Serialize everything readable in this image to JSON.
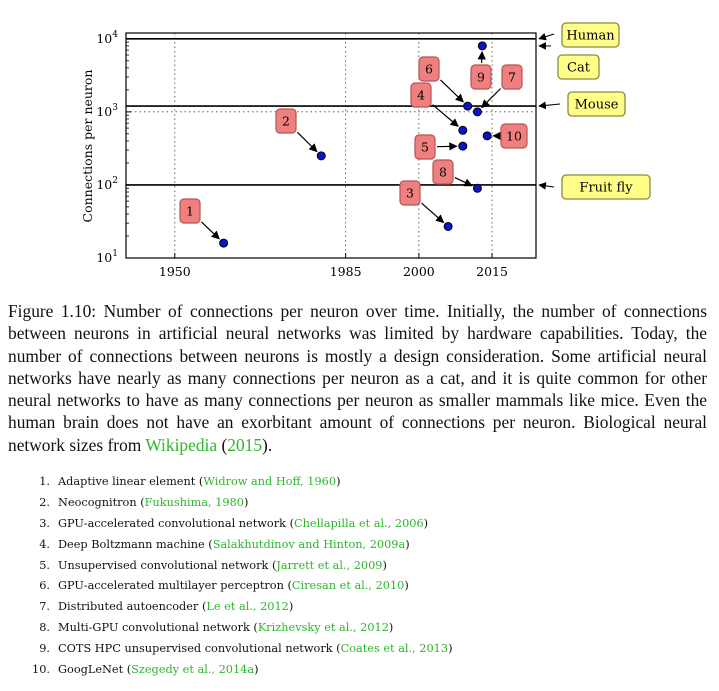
{
  "chart_data": {
    "type": "scatter",
    "ylabel": "Connections per neuron",
    "xlabel": "",
    "y_scale": "log",
    "xlim": [
      1940,
      2024
    ],
    "ylim": [
      10,
      12000
    ],
    "x_ticks": [
      {
        "value": 1950,
        "label": "1950"
      },
      {
        "value": 1985,
        "label": "1985"
      },
      {
        "value": 2000,
        "label": "2000"
      },
      {
        "value": 2015,
        "label": "2015"
      }
    ],
    "y_ticks": [
      {
        "value": 10,
        "base": "10",
        "exp": "1"
      },
      {
        "value": 100,
        "base": "10",
        "exp": "2"
      },
      {
        "value": 1000,
        "base": "10",
        "exp": "3"
      },
      {
        "value": 10000,
        "base": "10",
        "exp": "4"
      }
    ],
    "points": [
      {
        "label": "1",
        "x": 1960,
        "y": 16
      },
      {
        "label": "2",
        "x": 1980,
        "y": 250
      },
      {
        "label": "3",
        "x": 2006,
        "y": 27
      },
      {
        "label": "4",
        "x": 2009,
        "y": 560
      },
      {
        "label": "5",
        "x": 2009,
        "y": 340
      },
      {
        "label": "6",
        "x": 2010,
        "y": 1200
      },
      {
        "label": "7",
        "x": 2012,
        "y": 1000
      },
      {
        "label": "8",
        "x": 2012,
        "y": 90
      },
      {
        "label": "9",
        "x": 2013,
        "y": 8000
      },
      {
        "label": "10",
        "x": 2014,
        "y": 470
      }
    ],
    "reference_lines": [
      {
        "name": "Human",
        "y": 10000
      },
      {
        "name": "Cat",
        "y": 8000
      },
      {
        "name": "Mouse",
        "y": 1200
      },
      {
        "name": "Fruit fly",
        "y": 100
      }
    ],
    "dotted_hline": 1000,
    "grid": "dotted vertical at x ticks"
  },
  "caption": {
    "text": "Figure 1.10: Number of connections per neuron over time. Initially, the number of connections between neurons in artificial neural networks was limited by hardware capabilities. Today, the number of connections between neurons is mostly a design consideration. Some artificial neural networks have nearly as many connections per neuron as a cat, and it is quite common for other neural networks to have as many connections per neuron as smaller mammals like mice. Even the human brain does not have an exorbitant amount of connections per neuron. Biological neural network sizes from",
    "cite_name": "Wikipedia",
    "cite_open": "(",
    "cite_year": "2015",
    "cite_close": ")."
  },
  "references": [
    {
      "num": "1.",
      "text": "Adaptive linear element",
      "cite_open": "(",
      "cite": "Widrow and Hoff, 1960",
      "cite_close": ")"
    },
    {
      "num": "2.",
      "text": "Neocognitron",
      "cite_open": "(",
      "cite": "Fukushima, 1980",
      "cite_close": ")"
    },
    {
      "num": "3.",
      "text": "GPU-accelerated convolutional network",
      "cite_open": "(",
      "cite": "Chellapilla et al., 2006",
      "cite_close": ")"
    },
    {
      "num": "4.",
      "text": "Deep Boltzmann machine",
      "cite_open": "(",
      "cite": "Salakhutdinov and Hinton, 2009a",
      "cite_close": ")"
    },
    {
      "num": "5.",
      "text": "Unsupervised convolutional network",
      "cite_open": "(",
      "cite": "Jarrett et al., 2009",
      "cite_close": ")"
    },
    {
      "num": "6.",
      "text": "GPU-accelerated multilayer perceptron",
      "cite_open": "(",
      "cite": "Ciresan et al., 2010",
      "cite_close": ")"
    },
    {
      "num": "7.",
      "text": "Distributed autoencoder",
      "cite_open": "(",
      "cite": "Le et al., 2012",
      "cite_close": ")"
    },
    {
      "num": "8.",
      "text": "Multi-GPU convolutional network",
      "cite_open": "(",
      "cite": "Krizhevsky et al., 2012",
      "cite_close": ")"
    },
    {
      "num": "9.",
      "text": "COTS HPC unsupervised convolutional network",
      "cite_open": "(",
      "cite": "Coates et al., 2013",
      "cite_close": ")"
    },
    {
      "num": "10.",
      "text": "GoogLeNet",
      "cite_open": "(",
      "cite": "Szegedy et al., 2014a",
      "cite_close": ")"
    }
  ],
  "colors": {
    "marker_fill": "#0a14c8",
    "label_box_fill": "#f08080",
    "label_box_stroke": "#b25555",
    "annotation_fill": "#ffff88",
    "annotation_stroke": "#8a8a40",
    "citation": "#2db52d"
  }
}
